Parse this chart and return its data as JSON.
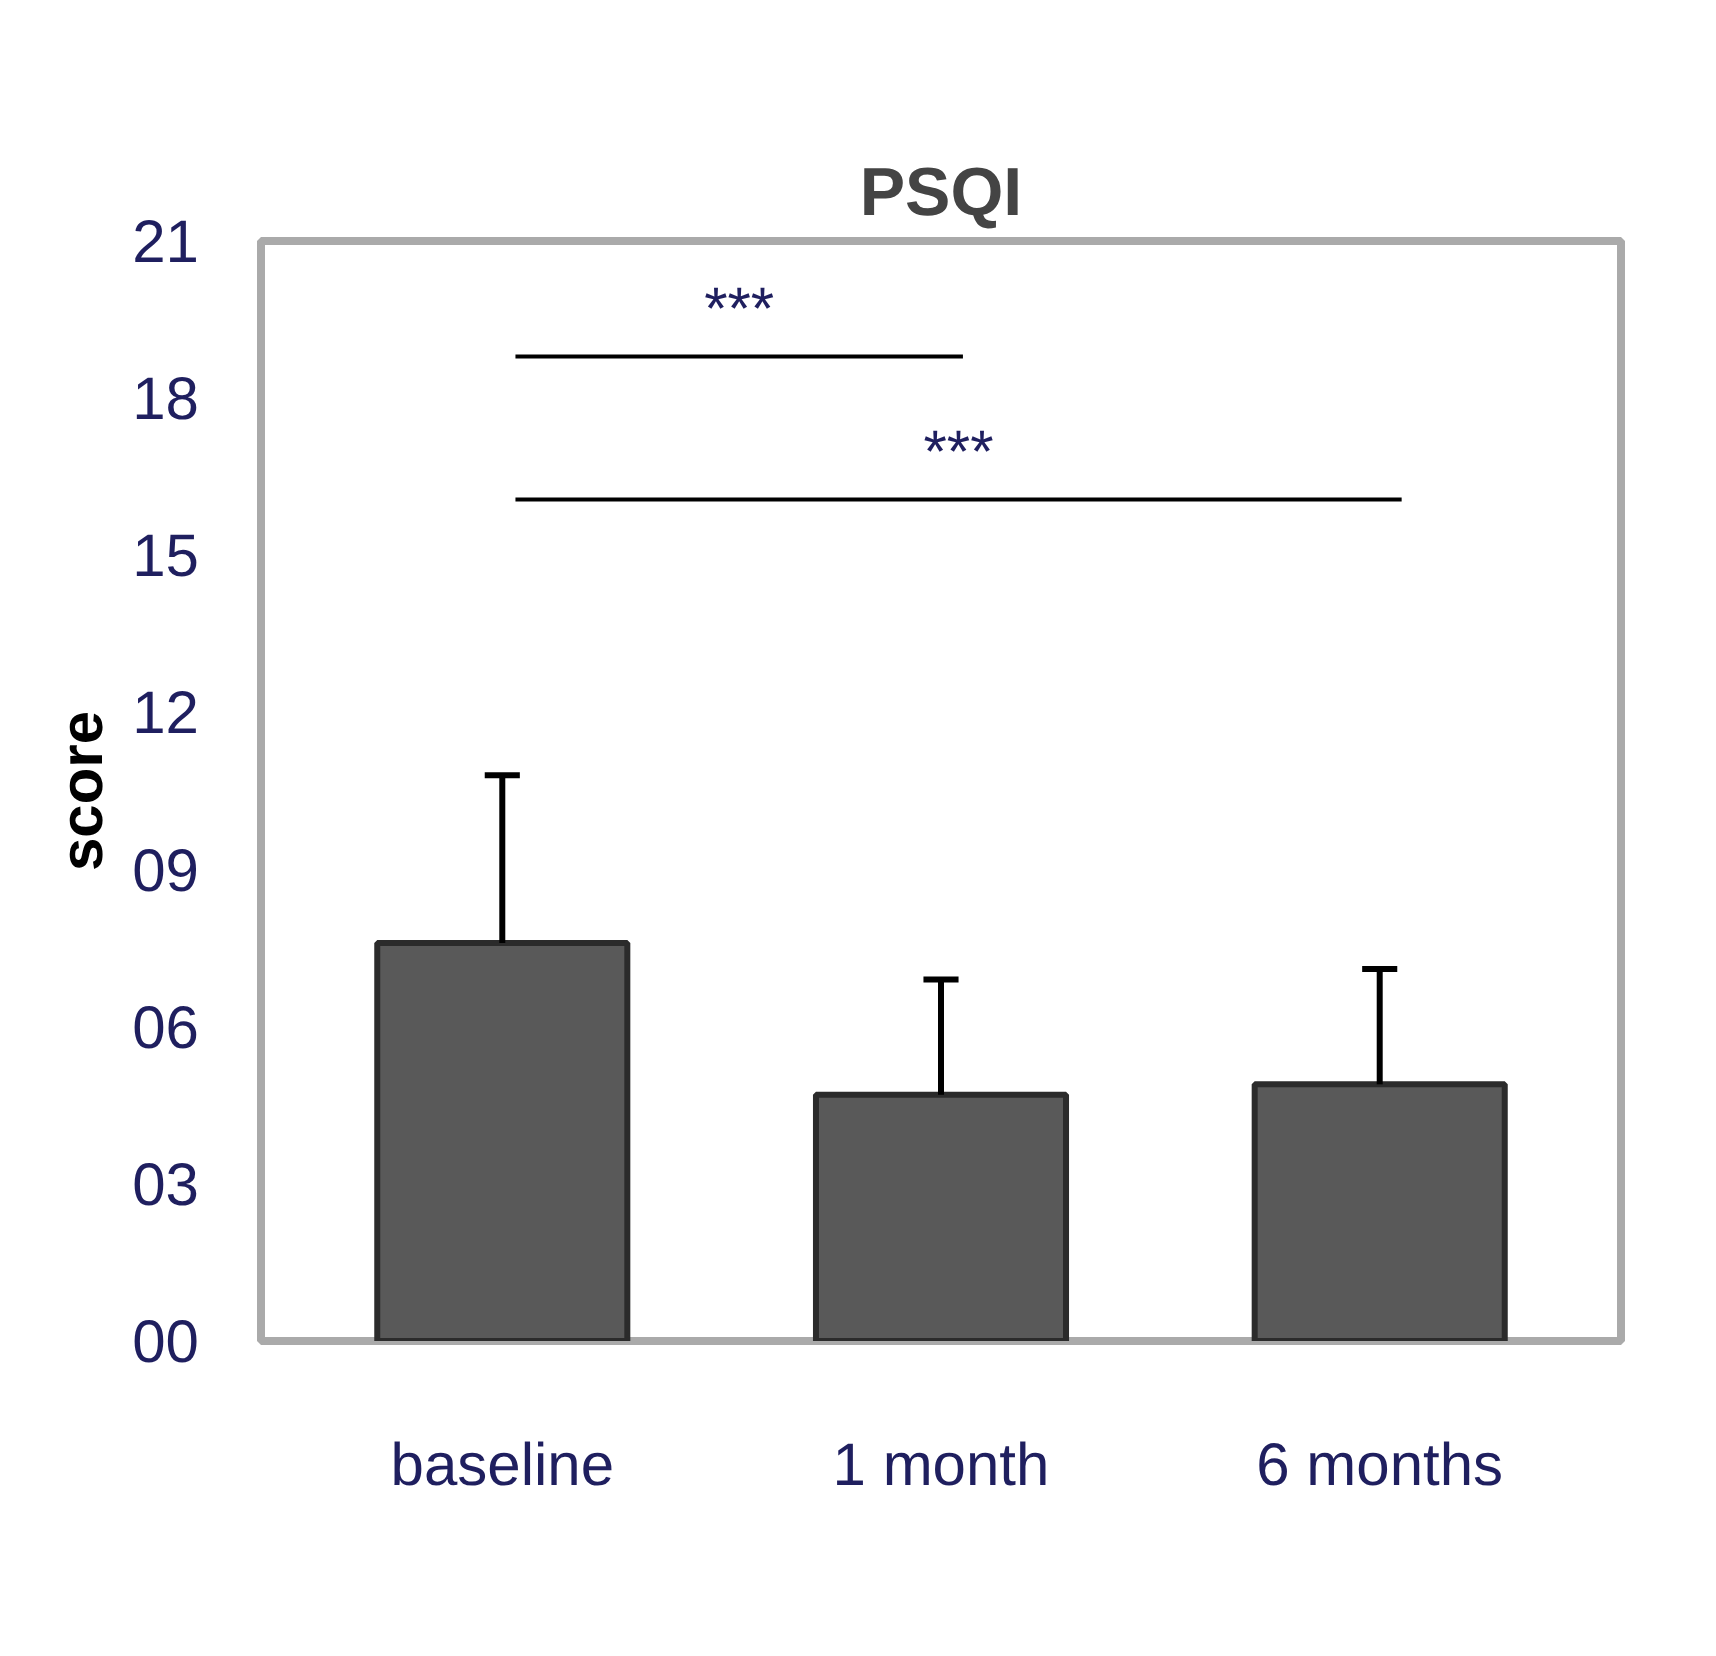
{
  "chart_data": {
    "type": "bar",
    "title": "PSQI",
    "ylabel": "score",
    "categories": [
      "baseline",
      "1 month",
      "6 months"
    ],
    "values": [
      7.6,
      4.7,
      4.9
    ],
    "color": "#595959",
    "errors": [
      [
        7.6,
        10.8
      ],
      [
        4.7,
        6.9
      ],
      [
        4.9,
        7.1
      ]
    ],
    "ylim": [
      0,
      21
    ],
    "yticks": [
      {
        "value": 0,
        "label": "00"
      },
      {
        "value": 3,
        "label": "03"
      },
      {
        "value": 6,
        "label": "06"
      },
      {
        "value": 9,
        "label": "09"
      },
      {
        "value": 12,
        "label": "12"
      },
      {
        "value": 15,
        "label": "15"
      },
      {
        "value": 18,
        "label": "18"
      },
      {
        "value": 21,
        "label": "21"
      }
    ],
    "annotations": [
      "***",
      "***"
    ],
    "grid": false
  }
}
